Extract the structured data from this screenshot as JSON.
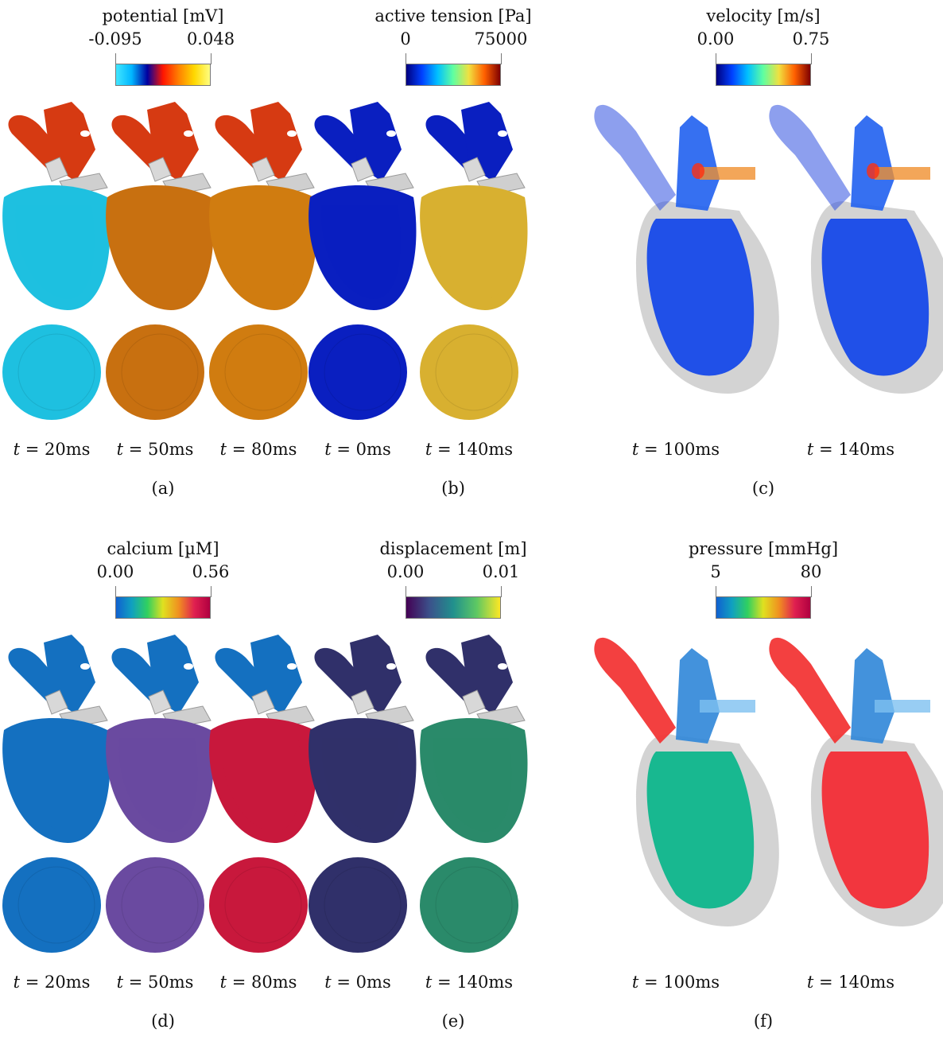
{
  "panels": [
    {
      "label": "(a)",
      "colorbar": {
        "title": "potential [mV]",
        "min": "-0.095",
        "max": "0.048"
      },
      "times": [
        "20ms",
        "50ms",
        "80ms"
      ],
      "colors": {
        "bar": [
          "#41e6ff",
          "#00b6ff",
          "#0000a0",
          "#ff1500",
          "#ff8000",
          "#ffd800",
          "#fffe80"
        ],
        "atria": "#d63a12",
        "vent_a": "#1ec0e0",
        "vent_b": "#c87010",
        "vent_c": "#d07c10"
      }
    },
    {
      "label": "(b)",
      "colorbar": {
        "title": "active tension [Pa]",
        "min": "0",
        "max": "75000"
      },
      "times": [
        "0ms",
        "140ms"
      ],
      "colors": {
        "bar": [
          "#00007f",
          "#0040ff",
          "#00c0ff",
          "#60ffa0",
          "#f0e040",
          "#ff6000",
          "#7f0000"
        ],
        "low": "#0a1fc0",
        "high": "#d8b030"
      }
    },
    {
      "label": "(c)",
      "colorbar": {
        "title": "velocity [m/s]",
        "min": "0.00",
        "max": "0.75"
      },
      "times": [
        "100ms",
        "140ms"
      ],
      "colors": {
        "bar": [
          "#00007f",
          "#0040ff",
          "#00c0ff",
          "#60ffa0",
          "#f0e040",
          "#ff6000",
          "#7f0000"
        ],
        "blood": "#2050e8"
      }
    },
    {
      "label": "(d)",
      "colorbar": {
        "title": "calcium [µM]",
        "min": "0.00",
        "max": "0.56"
      },
      "times": [
        "20ms",
        "50ms",
        "80ms"
      ],
      "colors": {
        "bar": [
          "#1060d0",
          "#10a0c0",
          "#30d060",
          "#e0e020",
          "#f09020",
          "#e02050",
          "#b00040"
        ],
        "base": "#1470c0",
        "hot": "#c8183c"
      }
    },
    {
      "label": "(e)",
      "colorbar": {
        "title": "displacement [m]",
        "min": "0.00",
        "max": "0.01"
      },
      "times": [
        "0ms",
        "140ms"
      ],
      "colors": {
        "bar": [
          "#440154",
          "#3b528b",
          "#21908d",
          "#5dc863",
          "#fde725"
        ],
        "low": "#30306a",
        "high": "#2a8a6a"
      }
    },
    {
      "label": "(f)",
      "colorbar": {
        "title": "pressure [mmHg]",
        "min": "5",
        "max": "80"
      },
      "times": [
        "100ms",
        "140ms"
      ],
      "colors": {
        "bar": [
          "#1060d0",
          "#10a0c0",
          "#30d060",
          "#e0e020",
          "#f09020",
          "#e02050",
          "#b00040"
        ],
        "aorta": "#f23636",
        "atrium": "#2f86d8",
        "vent_a": "#18b890",
        "vent_b": "#f2363e"
      }
    }
  ]
}
